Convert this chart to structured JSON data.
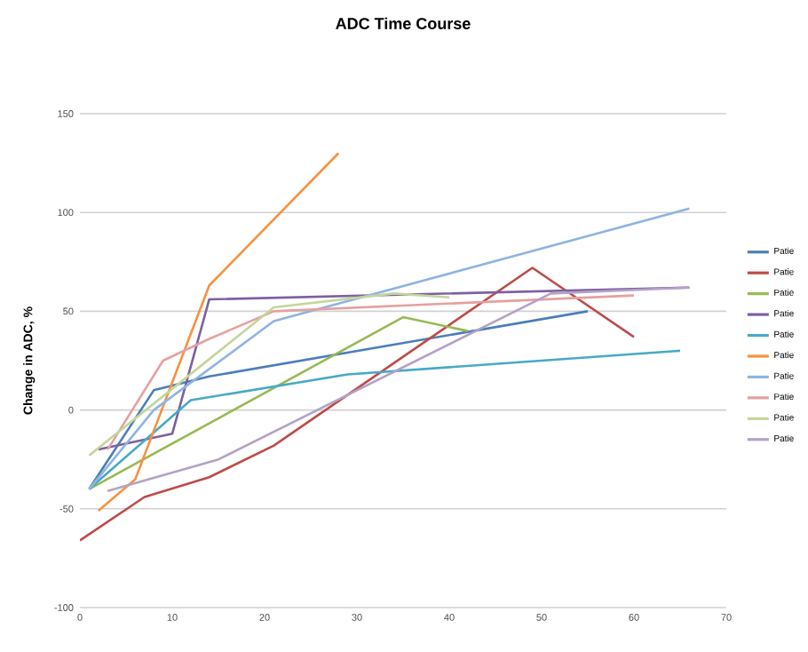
{
  "chart_data": {
    "type": "line",
    "title": "ADC Time Course",
    "ylabel": "Change in ADC, %",
    "xlim": [
      0,
      70
    ],
    "xticks": [
      0,
      10,
      20,
      30,
      40,
      50,
      60,
      70
    ],
    "ylim": [
      -100,
      150
    ],
    "yticks": [
      -100,
      -50,
      0,
      50,
      100,
      150
    ],
    "grid": "y",
    "legend": "right",
    "marker": "none",
    "line_style": "solid",
    "series": [
      {
        "name": "Patie",
        "color": "#4a7ebb",
        "x": [
          1,
          8,
          14,
          55
        ],
        "values": [
          -40,
          10,
          17,
          50
        ]
      },
      {
        "name": "Patie",
        "color": "#be4b48",
        "x": [
          0,
          7,
          14,
          21,
          49,
          60
        ],
        "values": [
          -66,
          -44,
          -34,
          -18,
          72,
          37
        ]
      },
      {
        "name": "Patie",
        "color": "#98b954",
        "x": [
          1,
          35,
          42
        ],
        "values": [
          -40,
          47,
          40
        ]
      },
      {
        "name": "Patie",
        "color": "#7d60a0",
        "x": [
          2,
          10,
          14,
          66
        ],
        "values": [
          -20,
          -12,
          56,
          62
        ]
      },
      {
        "name": "Patie",
        "color": "#46aac5",
        "x": [
          1,
          12,
          29,
          65
        ],
        "values": [
          -40,
          5,
          18,
          30
        ]
      },
      {
        "name": "Patie",
        "color": "#f69240",
        "x": [
          2,
          6,
          14,
          28
        ],
        "values": [
          -51,
          -35,
          63,
          130
        ]
      },
      {
        "name": "Patie",
        "color": "#8eb4e3",
        "x": [
          1,
          8,
          21,
          66
        ],
        "values": [
          -40,
          0,
          45,
          102
        ]
      },
      {
        "name": "Patie",
        "color": "#e6a0a0",
        "x": [
          3,
          9,
          14,
          21,
          60
        ],
        "values": [
          -20,
          25,
          36,
          50,
          58
        ]
      },
      {
        "name": "Patie",
        "color": "#c3d69b",
        "x": [
          1,
          21,
          34,
          40
        ],
        "values": [
          -23,
          52,
          59,
          57
        ]
      },
      {
        "name": "Patie",
        "color": "#b3a2c7",
        "x": [
          3,
          15,
          51,
          66
        ],
        "values": [
          -41,
          -25,
          59,
          62
        ]
      }
    ]
  }
}
